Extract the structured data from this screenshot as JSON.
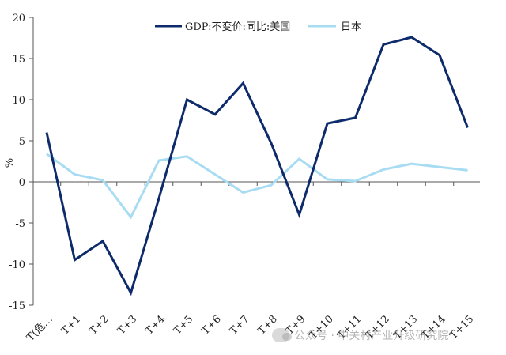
{
  "chart_data": {
    "type": "line",
    "ylabel": "%",
    "ylim": [
      -15,
      20
    ],
    "yticks": [
      20,
      15,
      10,
      5,
      0,
      -5,
      -10,
      -15
    ],
    "categories": [
      "T(危…",
      "T+1",
      "T+2",
      "T+3",
      "T+4",
      "T+5",
      "T+6",
      "T+7",
      "T+8",
      "T+9",
      "T+10",
      "T+11",
      "T+12",
      "T+13",
      "T+14",
      "T+15"
    ],
    "legend_position": "top",
    "series": [
      {
        "name": "GDP:不变价:同比:美国",
        "color": "#0d2a6b",
        "values": [
          6.0,
          -9.5,
          -7.2,
          -13.5,
          -2.0,
          10.0,
          8.2,
          12.0,
          4.7,
          -4.0,
          7.1,
          7.8,
          16.7,
          17.6,
          15.4,
          6.6
        ]
      },
      {
        "name": "日本",
        "color": "#a8dcf2",
        "values": [
          3.4,
          0.9,
          0.2,
          -4.3,
          2.6,
          3.1,
          0.9,
          -1.3,
          -0.4,
          2.8,
          0.3,
          0.1,
          1.5,
          2.2,
          1.8,
          1.4
        ]
      }
    ]
  },
  "watermark": {
    "text": "公众号 · 中关村产业升级研究院",
    "icon": "wechat-icon"
  }
}
